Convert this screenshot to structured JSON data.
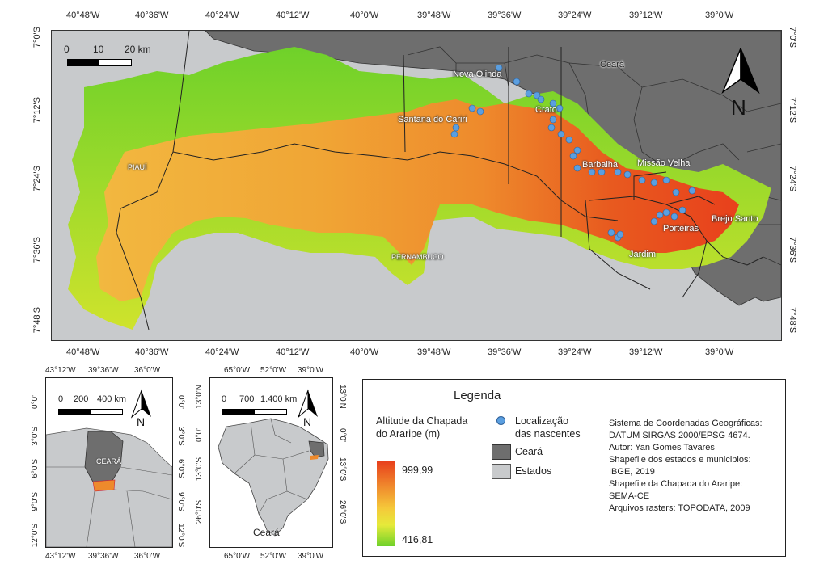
{
  "main_map": {
    "top_ticks": [
      "40°48'W",
      "40°36'W",
      "40°24'W",
      "40°12'W",
      "40°0'W",
      "39°48'W",
      "39°36'W",
      "39°24'W",
      "39°12'W",
      "39°0'W"
    ],
    "bottom_ticks": [
      "40°48'W",
      "40°36'W",
      "40°24'W",
      "40°12'W",
      "40°0'W",
      "39°48'W",
      "39°36'W",
      "39°24'W",
      "39°12'W",
      "39°0'W"
    ],
    "left_ticks": [
      "7°0'S",
      "7°12'S",
      "7°24'S",
      "7°36'S",
      "7°48'S"
    ],
    "right_ticks": [
      "7°0'S",
      "7°12'S",
      "7°24'S",
      "7°36'S",
      "7°48'S"
    ],
    "scale": {
      "labels": [
        "0",
        "10",
        "20 km"
      ]
    },
    "north_label": "N",
    "places": {
      "ceara": "Ceará",
      "nova_olinda": "Nova Olinda",
      "crato": "Crato",
      "santana": "Santana do Cariri",
      "barbalha": "Barbalha",
      "missao_velha": "Missão Velha",
      "brejo_santo": "Brejo Santo",
      "porteiras": "Porteiras",
      "jardim": "Jardim",
      "piaui": "PIAUÍ",
      "pernambuco": "PERNAMBUCO"
    },
    "colors": {
      "high": "#e8401c",
      "mid": "#f2a431",
      "low": "#4cc825",
      "state": "#c8cacc",
      "ceara": "#6e6e6e",
      "spring": "#5b9fe0"
    }
  },
  "inset_ne": {
    "top_ticks": [
      "43°12'W",
      "39°36'W",
      "36°0'W"
    ],
    "bottom_ticks": [
      "43°12'W",
      "39°36'W",
      "36°0'W"
    ],
    "left_ticks": [
      "0°0'",
      "3°0'S",
      "6°0'S",
      "9°0'S",
      "12°0'S"
    ],
    "right_ticks": [
      "0°0'",
      "3°0'S",
      "6°0'S",
      "9°0'S",
      "12°0'S"
    ],
    "scale": {
      "labels": [
        "0",
        "200",
        "400 km"
      ]
    },
    "north_label": "N",
    "ceara_label": "CEARÁ"
  },
  "inset_br": {
    "top_ticks": [
      "65°0'W",
      "52°0'W",
      "39°0'W"
    ],
    "bottom_ticks": [
      "65°0'W",
      "52°0'W",
      "39°0'W"
    ],
    "left_ticks": [
      "13°0'N",
      "0°0'",
      "13°0'S",
      "26°0'S"
    ],
    "right_ticks": [
      "13°0'N",
      "0°0'",
      "13°0'S",
      "26°0'S"
    ],
    "scale": {
      "labels": [
        "0",
        "700",
        "1.400 km"
      ]
    },
    "north_label": "N",
    "ceara_label": "Ceará"
  },
  "legend": {
    "title": "Legenda",
    "altitude_title": "Altitude da Chapada\ndo Araripe (m)",
    "max": "999,99",
    "min": "416,81",
    "springs": "Localização\ndas nascentes",
    "ceara": "Ceará",
    "estados": "Estados"
  },
  "info": {
    "lines": [
      "Sistema de Coordenadas Geográficas:",
      "DATUM SIRGAS 2000/EPSG 4674.",
      "Autor: Yan Gomes Tavares",
      "Shapefile dos estados e municipios:",
      "IBGE, 2019",
      "Shapefile da Chapada do Araripe:",
      "SEMA-CE",
      "Arquivos rasters: TOPODATA, 2009"
    ]
  }
}
